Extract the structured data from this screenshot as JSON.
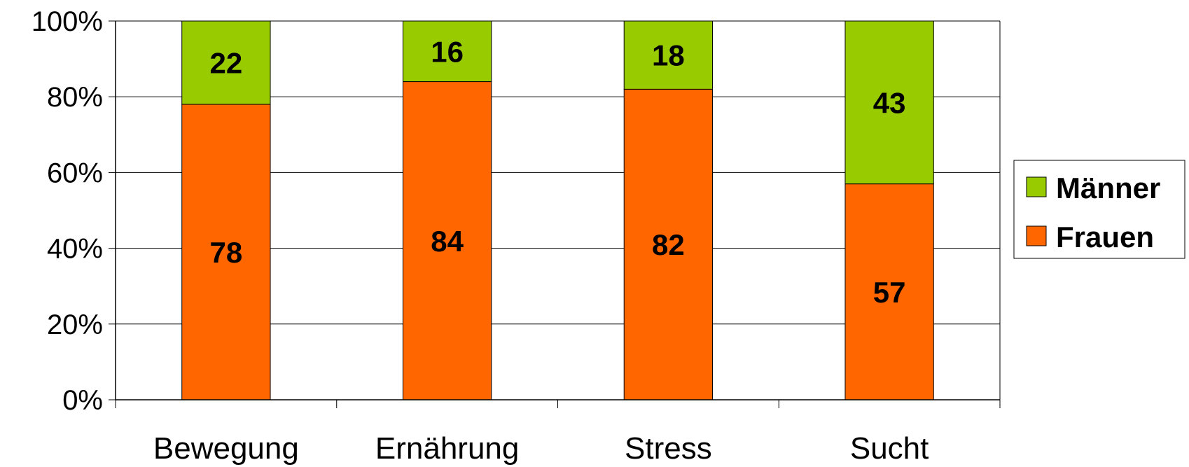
{
  "colors": {
    "frauen": "#ff6600",
    "maenner": "#99cc00",
    "grid": "#000000",
    "axis": "#000000"
  },
  "chart_data": {
    "type": "bar",
    "stacked": true,
    "percent": true,
    "categories": [
      "Bewegung",
      "Ernährung",
      "Stress",
      "Sucht"
    ],
    "series": [
      {
        "name": "Frauen",
        "values": [
          78,
          84,
          82,
          57
        ]
      },
      {
        "name": "Männer",
        "values": [
          22,
          16,
          18,
          43
        ]
      }
    ],
    "ylim": [
      0,
      100
    ],
    "yticks": [
      "0%",
      "20%",
      "40%",
      "60%",
      "80%",
      "100%"
    ],
    "grid": true,
    "legend_position": "right",
    "legend_order": [
      "Männer",
      "Frauen"
    ]
  }
}
